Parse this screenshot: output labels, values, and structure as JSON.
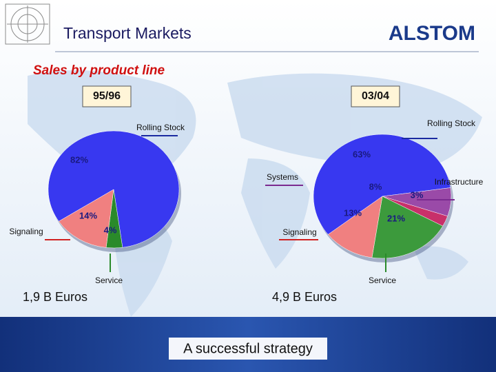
{
  "header": {
    "title": "Transport Markets",
    "logo": "ALSTOM"
  },
  "subtitle": "Sales by product line",
  "footer": "A successful strategy",
  "chart_data": [
    {
      "type": "pie",
      "title": "95/96",
      "total_label": "1,9 B Euros",
      "categories": [
        "Rolling Stock",
        "Service",
        "Signaling"
      ],
      "values": [
        82,
        4,
        14
      ],
      "value_labels": [
        "82%",
        "4%",
        "14%"
      ],
      "colors": [
        "#3838f0",
        "#2a8a2a",
        "#f08080"
      ]
    },
    {
      "type": "pie",
      "title": "03/04",
      "total_label": "4,9 B Euros",
      "categories": [
        "Rolling Stock",
        "Systems",
        "Infrastructure",
        "Service",
        "Signaling"
      ],
      "values": [
        63,
        8,
        3,
        21,
        13
      ],
      "value_labels": [
        "63%",
        "8%",
        "3%",
        "21%",
        "13%"
      ],
      "colors": [
        "#3838f0",
        "#9a4aa8",
        "#c8306a",
        "#3c9a3c",
        "#f08080"
      ]
    }
  ]
}
